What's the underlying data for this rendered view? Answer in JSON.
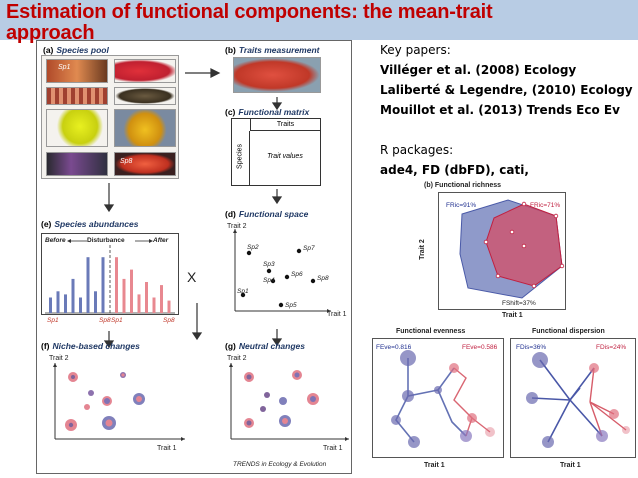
{
  "slide": {
    "title_line1": "Estimation of functional components: the mean-trait",
    "title_line2": "approach"
  },
  "figure": {
    "panel_a": {
      "letter": "(a)",
      "label": "Species pool",
      "sp1": "Sp1",
      "sp8": "Sp8"
    },
    "panel_b": {
      "letter": "(b)",
      "label": "Traits measurement"
    },
    "panel_c": {
      "letter": "(c)",
      "label": "Functional matrix",
      "col_header": "Traits",
      "row_header": "Species",
      "cell": "Trait values"
    },
    "panel_d": {
      "letter": "(d)",
      "label": "Functional space",
      "yaxis": "Trait 2",
      "xaxis": "Trait 1",
      "species": [
        "Sp2",
        "Sp7",
        "Sp3",
        "Sp6",
        "Sp8",
        "Sp4",
        "Sp1",
        "Sp5"
      ]
    },
    "panel_e": {
      "letter": "(e)",
      "label": "Species abundances",
      "before": "Before",
      "disturbance": "Disturbance",
      "after": "After",
      "x_labels": [
        "Sp1",
        "Sp8",
        "Sp1",
        "Sp8"
      ],
      "before_values": [
        0.25,
        0.35,
        0.3,
        0.55,
        0.25,
        0.9,
        0.35,
        0.9
      ],
      "after_values": [
        0.9,
        0.55,
        0.7,
        0.3,
        0.5,
        0.25,
        0.45,
        0.2
      ]
    },
    "cross_symbol": "X",
    "panel_f": {
      "letter": "(f)",
      "label": "Niche-based changes",
      "yaxis": "Trait 2",
      "xaxis": "Trait 1"
    },
    "panel_g": {
      "letter": "(g)",
      "label": "Neutral changes",
      "yaxis": "Trait 2",
      "xaxis": "Trait 1"
    },
    "credit": "TRENDS in Ecology & Evolution"
  },
  "references": {
    "heading": "Key papers:",
    "papers": [
      "Villéger et al. (2008) Ecology",
      "Laliberté & Legendre, (2010) Ecology",
      "Mouillot et al. (2013) Trends Eco Ev"
    ],
    "packages_heading": "R packages:",
    "packages": "ade4, FD (dbFD), cati,"
  },
  "richness_chart": {
    "letter": "(b)",
    "title": "Functional richness",
    "yaxis": "Trait 2",
    "xaxis": "Trait 1",
    "fric_blue": "FRic=91%",
    "fric_red": "FRic=71%",
    "fshift": "FShift=37%"
  },
  "evenness_chart": {
    "title": "Functional evenness",
    "xaxis": "Trait 1",
    "feve_blue": "FEve=0.816",
    "feve_red": "FEve=0.586"
  },
  "dispersion_chart": {
    "title": "Functional dispersion",
    "xaxis": "Trait 1",
    "fdis_blue": "FDis=36%",
    "fdis_red": "FDis=24%"
  },
  "colors": {
    "title_bg": "#b8cce4",
    "title_text": "#c00000",
    "blue": "#4a5aa8",
    "red": "#d04050"
  }
}
